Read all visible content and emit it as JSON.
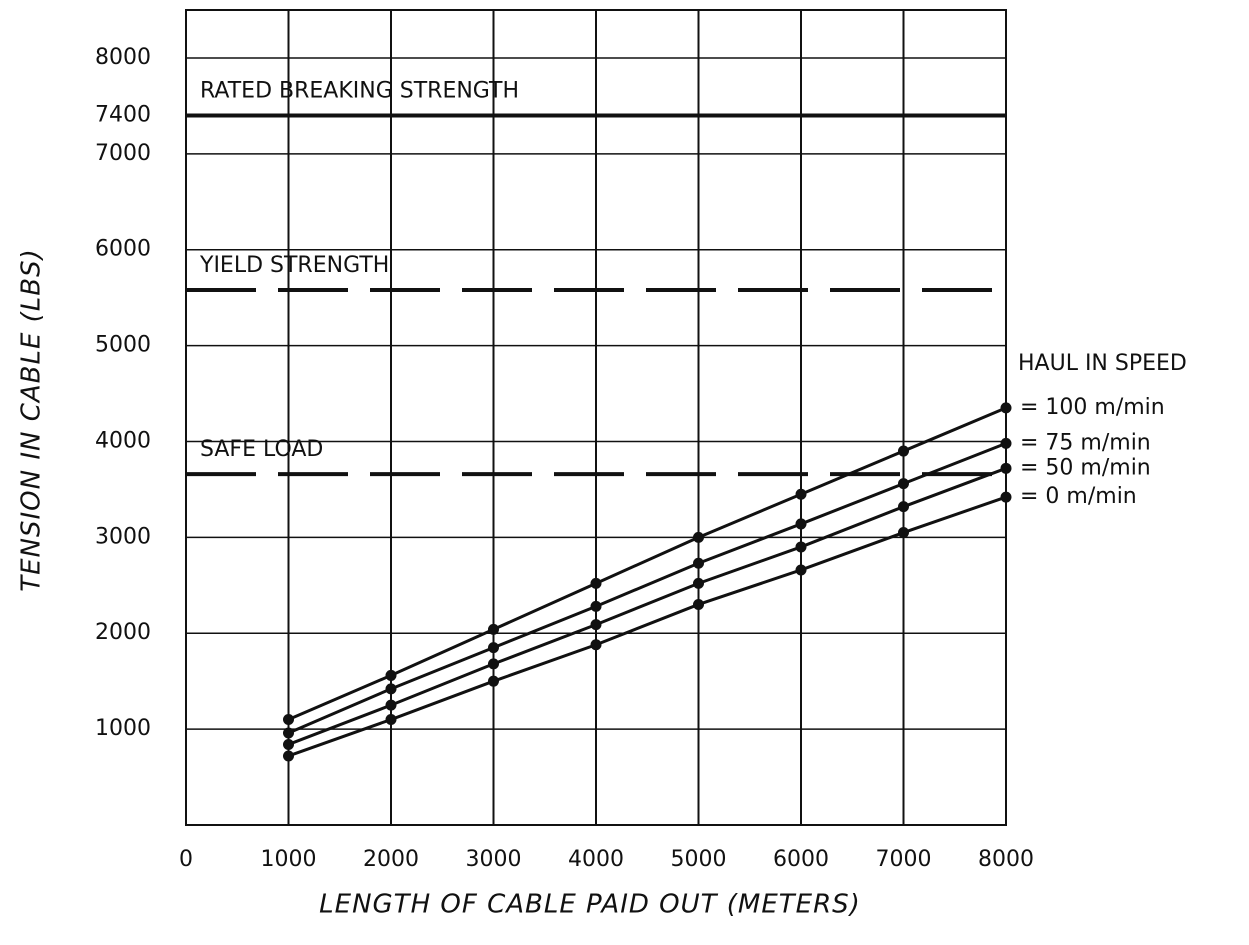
{
  "chart_data": {
    "type": "line",
    "x_label": "LENGTH OF CABLE PAID OUT (METERS)",
    "y_label": "TENSION IN CABLE (LBS)",
    "x": [
      1000,
      2000,
      3000,
      4000,
      5000,
      6000,
      7000,
      8000
    ],
    "series": [
      {
        "name": "= 100 m/min",
        "color": "#111111",
        "values": [
          1100,
          1560,
          2040,
          2520,
          3000,
          3450,
          3900,
          4350
        ]
      },
      {
        "name": "= 75 m/min",
        "color": "#111111",
        "values": [
          960,
          1420,
          1850,
          2280,
          2730,
          3140,
          3560,
          3980
        ]
      },
      {
        "name": "= 50 m/min",
        "color": "#111111",
        "values": [
          840,
          1250,
          1680,
          2090,
          2520,
          2900,
          3320,
          3720
        ]
      },
      {
        "name": "= 0 m/min",
        "color": "#111111",
        "values": [
          720,
          1100,
          1500,
          1880,
          2300,
          2660,
          3050,
          3420
        ]
      }
    ],
    "legend_title": "HAUL IN SPEED",
    "reference_lines": [
      {
        "label": "RATED BREAKING STRENGTH",
        "value": 7400,
        "style": "solid"
      },
      {
        "label": "YIELD STRENGTH",
        "value": 5580,
        "style": "dashed"
      },
      {
        "label": "SAFE LOAD",
        "value": 3660,
        "style": "dashed"
      }
    ],
    "xlim": [
      0,
      8000
    ],
    "ylim": [
      0,
      8500
    ],
    "xticks": [
      0,
      1000,
      2000,
      3000,
      4000,
      5000,
      6000,
      7000,
      8000
    ],
    "yticks": [
      1000,
      2000,
      3000,
      4000,
      5000,
      6000,
      7000,
      7400,
      8000
    ],
    "grid": true
  }
}
